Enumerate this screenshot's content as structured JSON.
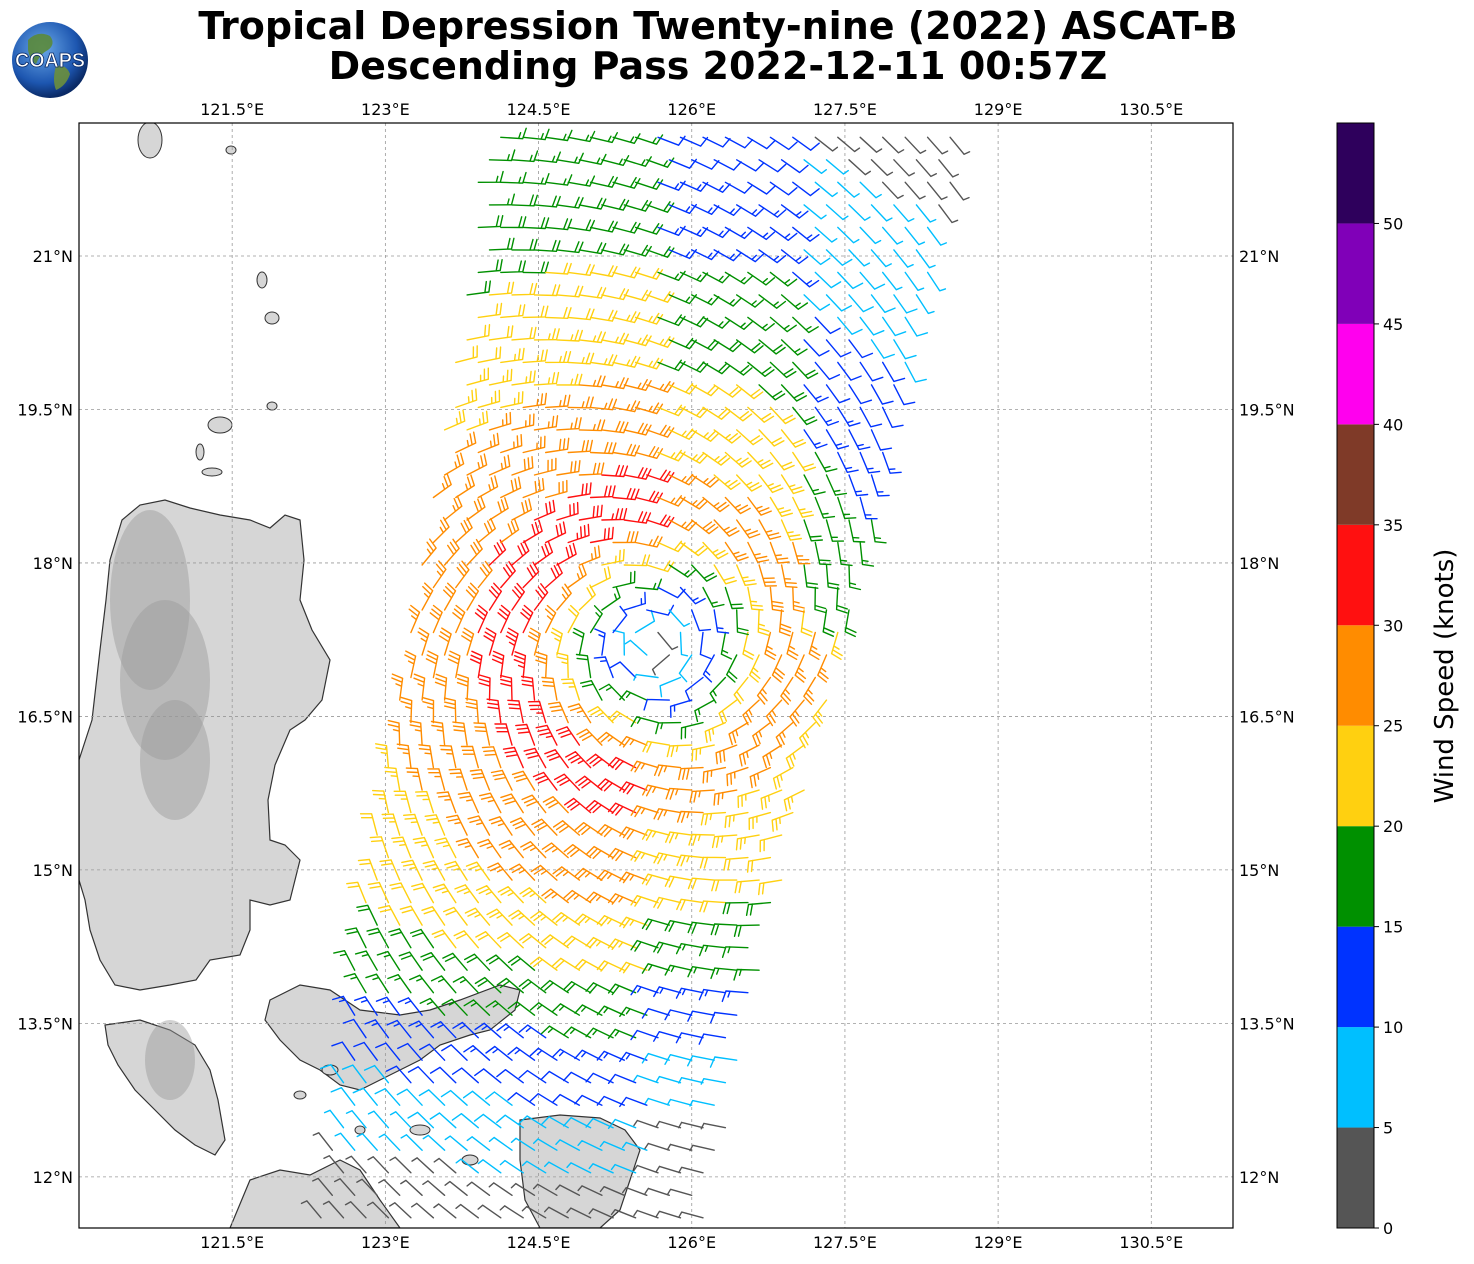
{
  "title": {
    "line1": "Tropical Depression Twenty-nine (2022) ASCAT-B",
    "line2": "Descending Pass 2022-12-11 00:57Z"
  },
  "logo": {
    "text": "COAPS",
    "icon": "globe-icon"
  },
  "map": {
    "lon_range": [
      120.0,
      131.3
    ],
    "lat_range": [
      11.5,
      22.3
    ],
    "lon_ticks": [
      {
        "value": 121.5,
        "label": "121.5°E"
      },
      {
        "value": 123.0,
        "label": "123°E"
      },
      {
        "value": 124.5,
        "label": "124.5°E"
      },
      {
        "value": 126.0,
        "label": "126°E"
      },
      {
        "value": 127.5,
        "label": "127.5°E"
      },
      {
        "value": 129.0,
        "label": "129°E"
      },
      {
        "value": 130.5,
        "label": "130.5°E"
      }
    ],
    "lat_ticks": [
      {
        "value": 12.0,
        "label": "12°N"
      },
      {
        "value": 13.5,
        "label": "13.5°N"
      },
      {
        "value": 15.0,
        "label": "15°N"
      },
      {
        "value": 16.5,
        "label": "16.5°N"
      },
      {
        "value": 18.0,
        "label": "18°N"
      },
      {
        "value": 19.5,
        "label": "19.5°N"
      },
      {
        "value": 21.0,
        "label": "21°N"
      }
    ],
    "grid": true,
    "storm_center": {
      "lon": 125.6,
      "lat": 17.2
    },
    "land_color": "#d6d6d6",
    "coast_color": "#333333"
  },
  "colorbar": {
    "label": "Wind Speed (knots)",
    "ticks": [
      "0",
      "5",
      "10",
      "15",
      "20",
      "25",
      "30",
      "35",
      "40",
      "45",
      "50"
    ],
    "bins": [
      {
        "min": 0,
        "max": 5,
        "color": "#555555"
      },
      {
        "min": 5,
        "max": 10,
        "color": "#00bfff"
      },
      {
        "min": 10,
        "max": 15,
        "color": "#0033ff"
      },
      {
        "min": 15,
        "max": 20,
        "color": "#009000"
      },
      {
        "min": 20,
        "max": 25,
        "color": "#ffd010"
      },
      {
        "min": 25,
        "max": 30,
        "color": "#ff8c00"
      },
      {
        "min": 30,
        "max": 35,
        "color": "#ff1010"
      },
      {
        "min": 35,
        "max": 40,
        "color": "#7f3a28"
      },
      {
        "min": 40,
        "max": 45,
        "color": "#ff00ee"
      },
      {
        "min": 45,
        "max": 50,
        "color": "#8000b8"
      },
      {
        "min": 50,
        "max": 55,
        "color": "#2e005c"
      }
    ]
  }
}
